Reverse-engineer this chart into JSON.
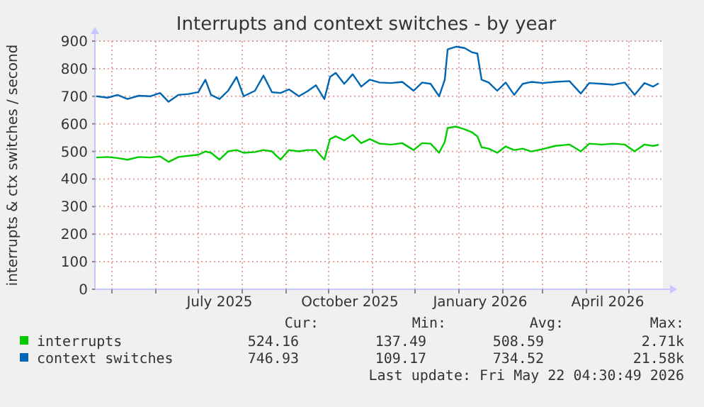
{
  "chart_data": {
    "type": "line",
    "title": "Interrupts and context switches - by year",
    "ylabel": "interrupts & ctx switches / second",
    "x": [
      "2025-04-20",
      "2025-04-28",
      "2025-05-05",
      "2025-05-12",
      "2025-05-20",
      "2025-05-28",
      "2025-06-04",
      "2025-06-10",
      "2025-06-17",
      "2025-06-24",
      "2025-07-01",
      "2025-07-06",
      "2025-07-10",
      "2025-07-16",
      "2025-07-22",
      "2025-07-28",
      "2025-08-02",
      "2025-08-10",
      "2025-08-16",
      "2025-08-22",
      "2025-08-28",
      "2025-09-03",
      "2025-09-10",
      "2025-09-16",
      "2025-09-22",
      "2025-09-28",
      "2025-10-02",
      "2025-10-06",
      "2025-10-12",
      "2025-10-18",
      "2025-10-24",
      "2025-10-30",
      "2025-11-06",
      "2025-11-14",
      "2025-11-22",
      "2025-11-30",
      "2025-12-06",
      "2025-12-12",
      "2025-12-18",
      "2025-12-22",
      "2025-12-24",
      "2025-12-30",
      "2026-01-05",
      "2026-01-10",
      "2026-01-14",
      "2026-01-17",
      "2026-01-22",
      "2026-01-28",
      "2026-02-03",
      "2026-02-09",
      "2026-02-15",
      "2026-02-21",
      "2026-03-01",
      "2026-03-10",
      "2026-03-20",
      "2026-03-28",
      "2026-04-03",
      "2026-04-12",
      "2026-04-20",
      "2026-04-28",
      "2026-05-05",
      "2026-05-12",
      "2026-05-18",
      "2026-05-22"
    ],
    "series": [
      {
        "name": "interrupts",
        "color": "#00cc00",
        "values": [
          478,
          480,
          476,
          470,
          480,
          478,
          482,
          462,
          480,
          484,
          488,
          500,
          495,
          470,
          500,
          505,
          495,
          498,
          505,
          500,
          470,
          505,
          500,
          505,
          505,
          470,
          545,
          555,
          540,
          560,
          530,
          545,
          528,
          525,
          530,
          505,
          530,
          528,
          495,
          535,
          585,
          590,
          580,
          570,
          555,
          515,
          510,
          495,
          518,
          505,
          510,
          500,
          508,
          520,
          525,
          500,
          528,
          525,
          528,
          525,
          500,
          525,
          520,
          524
        ]
      },
      {
        "name": "context switches",
        "color": "#0066b3",
        "values": [
          700,
          695,
          705,
          690,
          702,
          700,
          712,
          680,
          705,
          708,
          715,
          760,
          705,
          690,
          720,
          770,
          700,
          720,
          775,
          715,
          712,
          725,
          700,
          718,
          740,
          690,
          770,
          785,
          745,
          780,
          735,
          760,
          750,
          748,
          752,
          720,
          750,
          745,
          700,
          760,
          870,
          880,
          875,
          860,
          855,
          760,
          750,
          720,
          750,
          705,
          745,
          752,
          748,
          752,
          755,
          710,
          748,
          745,
          742,
          750,
          705,
          748,
          735,
          747
        ]
      }
    ],
    "xlim": [
      "2025-04-19",
      "2026-05-25"
    ],
    "xticks": [
      {
        "value": "2025-05-01",
        "label": null
      },
      {
        "value": "2025-06-01",
        "label": null
      },
      {
        "value": "2025-07-01",
        "label": null
      },
      {
        "value": "2025-07-16",
        "label": "July 2025"
      },
      {
        "value": "2025-08-01",
        "label": null
      },
      {
        "value": "2025-09-01",
        "label": null
      },
      {
        "value": "2025-10-01",
        "label": null
      },
      {
        "value": "2025-10-16",
        "label": "October 2025"
      },
      {
        "value": "2025-11-01",
        "label": null
      },
      {
        "value": "2025-12-01",
        "label": null
      },
      {
        "value": "2026-01-01",
        "label": null
      },
      {
        "value": "2026-01-16",
        "label": "January 2026"
      },
      {
        "value": "2026-02-01",
        "label": null
      },
      {
        "value": "2026-03-01",
        "label": null
      },
      {
        "value": "2026-04-01",
        "label": null
      },
      {
        "value": "2026-04-16",
        "label": "April 2026"
      },
      {
        "value": "2026-05-01",
        "label": null
      }
    ],
    "ylim": [
      0,
      900
    ],
    "yticks": [
      0,
      100,
      200,
      300,
      400,
      500,
      600,
      700,
      800,
      900
    ],
    "grid": true,
    "legend": "bottom",
    "marker": "none",
    "line_style": "solid",
    "annotations": [
      "Cur:",
      "Min:",
      "Avg:",
      "Max:",
      "524.16",
      "137.49",
      "508.59",
      "2.71k",
      "746.93",
      "109.17",
      "734.52",
      "21.58k",
      "Last update: Fri May 22 04:30:49 2026"
    ]
  }
}
